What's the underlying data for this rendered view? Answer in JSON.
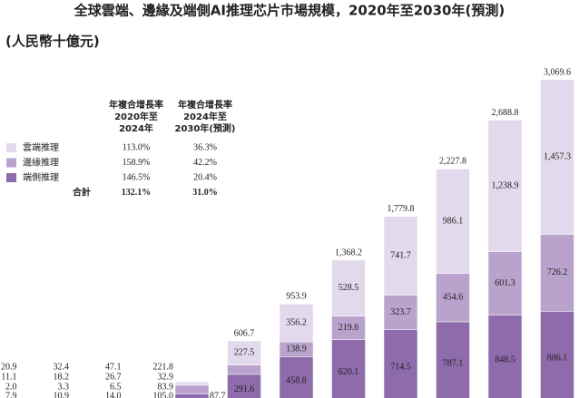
{
  "chart_data": {
    "type": "stacked_bar",
    "title": "全球雲端、邊緣及端側AI推理芯片市場規模，2020年至2030年(預測)",
    "subtitle": "(人民幣十億元)",
    "categories": [
      null,
      null,
      null,
      null,
      null,
      null,
      null,
      null,
      null,
      null,
      null
    ],
    "ylim": [
      0,
      3100
    ],
    "series": [
      {
        "name": "端側推理",
        "color": "#8e6bab",
        "values": [
          7.9,
          10.9,
          14.0,
          105.0,
          291.6,
          458.8,
          620.1,
          714.5,
          787.1,
          848.5,
          886.1
        ],
        "value_labels": [
          "7.9",
          "10.9",
          "14.0",
          "105.0",
          "291.6",
          "458.8",
          "620.1",
          "714.5",
          "787.1",
          "848.5",
          "886.1"
        ]
      },
      {
        "name": "邊緣推理",
        "color": "#b9a3cc",
        "values": [
          2.0,
          3.3,
          6.5,
          83.9,
          87.7,
          138.9,
          219.6,
          323.7,
          454.6,
          601.3,
          726.2
        ],
        "value_labels": [
          "2.0",
          "3.3",
          "6.5",
          "83.9",
          "87.7",
          "138.9",
          "219.6",
          "323.7",
          "454.6",
          "601.3",
          "726.2"
        ]
      },
      {
        "name": "雲端推理",
        "color": "#e2d9ec",
        "values": [
          11.1,
          18.2,
          26.7,
          32.9,
          227.5,
          356.2,
          528.5,
          741.7,
          986.1,
          1238.9,
          1457.3
        ],
        "value_labels": [
          "11.1",
          "18.2",
          "26.7",
          "32.9",
          "227.5",
          "356.2",
          "528.5",
          "741.7",
          "986.1",
          "1,238.9",
          "1,457.3"
        ]
      }
    ],
    "totals": {
      "values": [
        20.9,
        32.4,
        47.1,
        221.8,
        606.7,
        953.9,
        1368.2,
        1779.8,
        2227.8,
        2688.8,
        3069.6
      ],
      "value_labels": [
        "20.9",
        "32.4",
        "47.1",
        "221.8",
        "606.7",
        "953.9",
        "1,368.2",
        "1,779.8",
        "2,227.8",
        "2,688.8",
        "3,069.6"
      ]
    },
    "cagr_table": {
      "headers": [
        [
          "年複合增長率",
          "2020年至",
          "2024年"
        ],
        [
          "年複合增長率",
          "2024年至",
          "2030年(預測)"
        ]
      ],
      "rows": [
        [
          "雲端推理",
          "113.0%",
          "36.3%"
        ],
        [
          "邊緣推理",
          "158.9%",
          "42.2%"
        ],
        [
          "端側推理",
          "146.5%",
          "20.4%"
        ],
        [
          "合計",
          "132.1%",
          "31.0%"
        ]
      ]
    }
  }
}
